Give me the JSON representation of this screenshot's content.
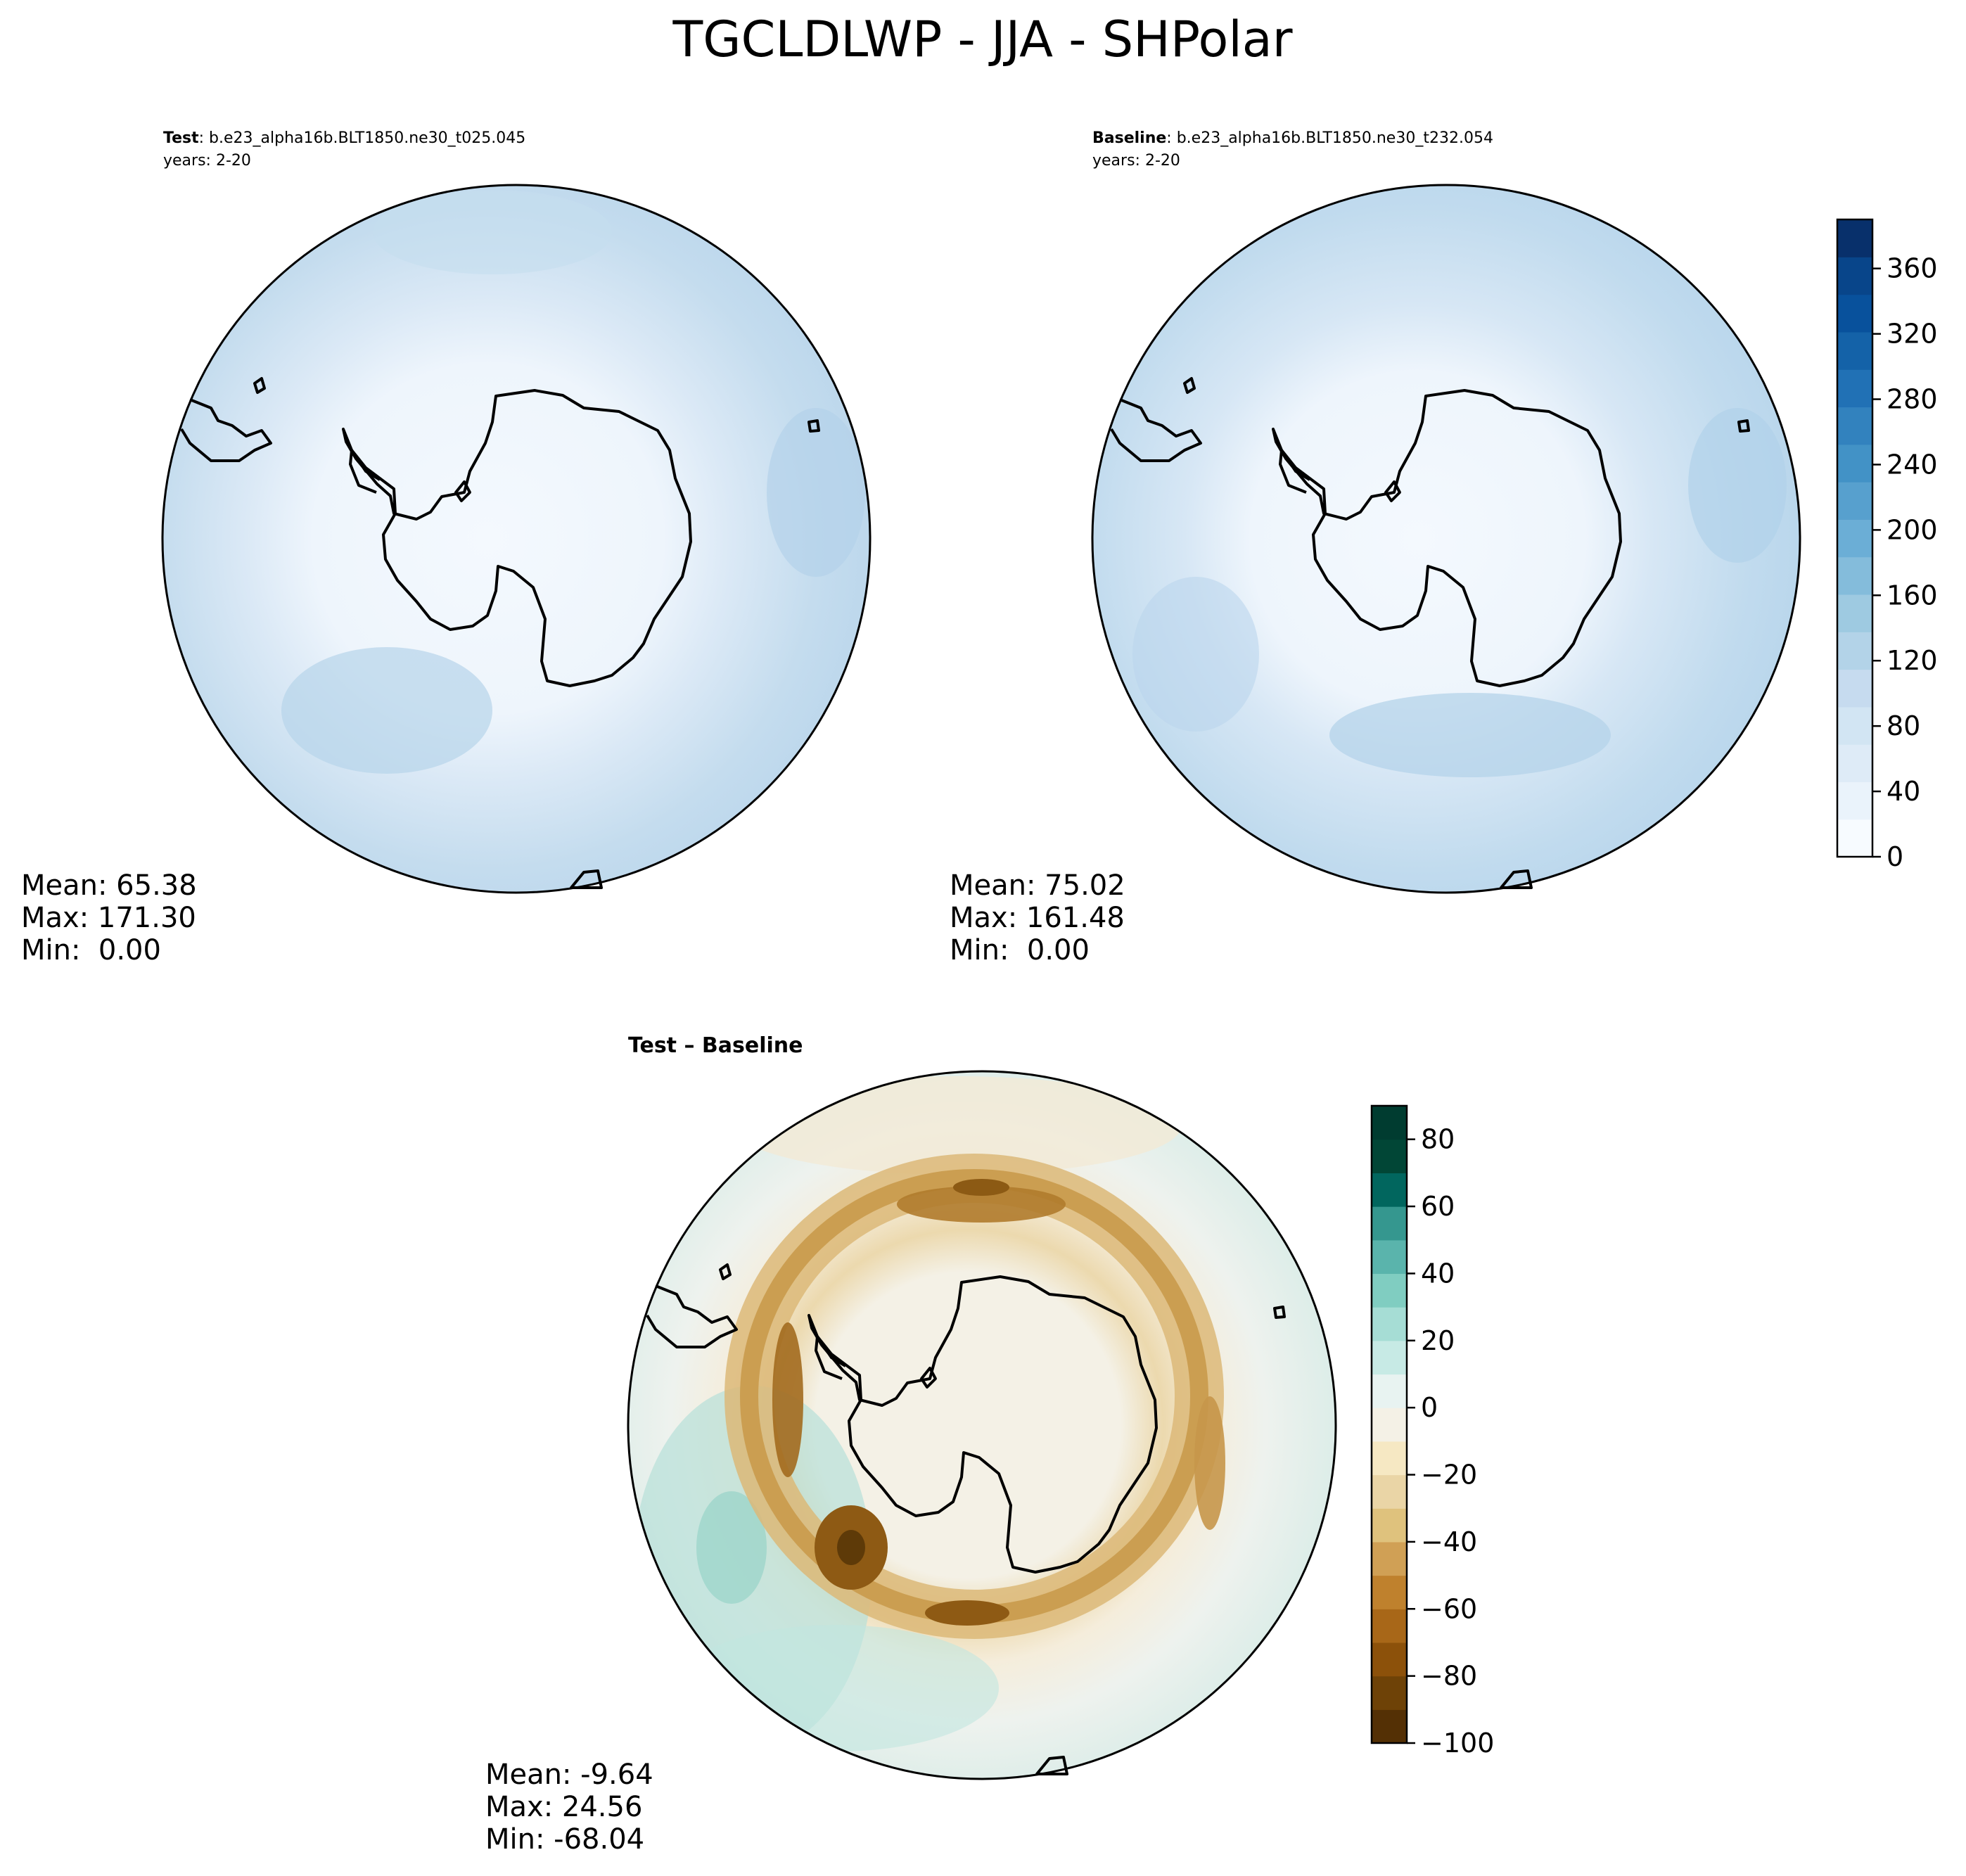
{
  "figure_title": "TGCLDLWP - JJA - SHPolar",
  "chart_data": [
    {
      "type": "polar_contour_map",
      "panel": "test",
      "label_bold": "Test",
      "label_text": ": b.e23_alpha16b.BLT1850.ne30_t025.045",
      "years": "years: 2-20",
      "stats": {
        "mean": "Mean: 65.38",
        "max": "Max: 171.30",
        "min": "Min:  0.00"
      },
      "projection": "South Polar Stereographic",
      "colormap": "Blues",
      "field_range": [
        0,
        171.3
      ]
    },
    {
      "type": "polar_contour_map",
      "panel": "baseline",
      "label_bold": "Baseline",
      "label_text": ": b.e23_alpha16b.BLT1850.ne30_t232.054",
      "years": "years: 2-20",
      "stats": {
        "mean": "Mean: 75.02",
        "max": "Max: 161.48",
        "min": "Min:  0.00"
      },
      "projection": "South Polar Stereographic",
      "colormap": "Blues",
      "field_range": [
        0,
        161.48
      ],
      "colorbar": {
        "range": [
          0,
          390
        ],
        "tick_values": [
          0,
          40,
          80,
          120,
          160,
          200,
          240,
          280,
          320,
          360
        ],
        "tick_labels": [
          "0",
          "40",
          "80",
          "120",
          "160",
          "200",
          "240",
          "280",
          "320",
          "360"
        ],
        "colors": [
          "#f7fbff",
          "#eaf3fb",
          "#deebf7",
          "#d2e5f3",
          "#c6dbef",
          "#b3d3e8",
          "#9ecae1",
          "#84bcdb",
          "#6baed6",
          "#57a0ce",
          "#4292c6",
          "#3282be",
          "#2171b5",
          "#1462a8",
          "#08519c",
          "#08458a",
          "#08306b"
        ]
      }
    },
    {
      "type": "polar_contour_map",
      "panel": "difference",
      "label_bold": "Test – Baseline",
      "stats": {
        "mean": "Mean: -9.64",
        "max": "Max: 24.56",
        "min": "Min: -68.04"
      },
      "projection": "South Polar Stereographic",
      "colormap": "BrBG",
      "field_range": [
        -68.04,
        24.56
      ],
      "colorbar": {
        "range": [
          -100,
          90
        ],
        "tick_values": [
          -100,
          -80,
          -60,
          -40,
          -20,
          0,
          20,
          40,
          60,
          80
        ],
        "tick_labels": [
          "−100",
          "−80",
          "−60",
          "−40",
          "−20",
          "0",
          "20",
          "40",
          "60",
          "80"
        ],
        "colors": [
          "#543005",
          "#6e4207",
          "#8c510a",
          "#a86718",
          "#bf812d",
          "#d0a055",
          "#dfc27d",
          "#ead5a6",
          "#f6e8c3",
          "#f4f1e6",
          "#e8f3f1",
          "#c7eae5",
          "#a6ddd5",
          "#80cdc1",
          "#5ab4ac",
          "#35978f",
          "#01665e",
          "#014636",
          "#003c30"
        ]
      }
    }
  ]
}
